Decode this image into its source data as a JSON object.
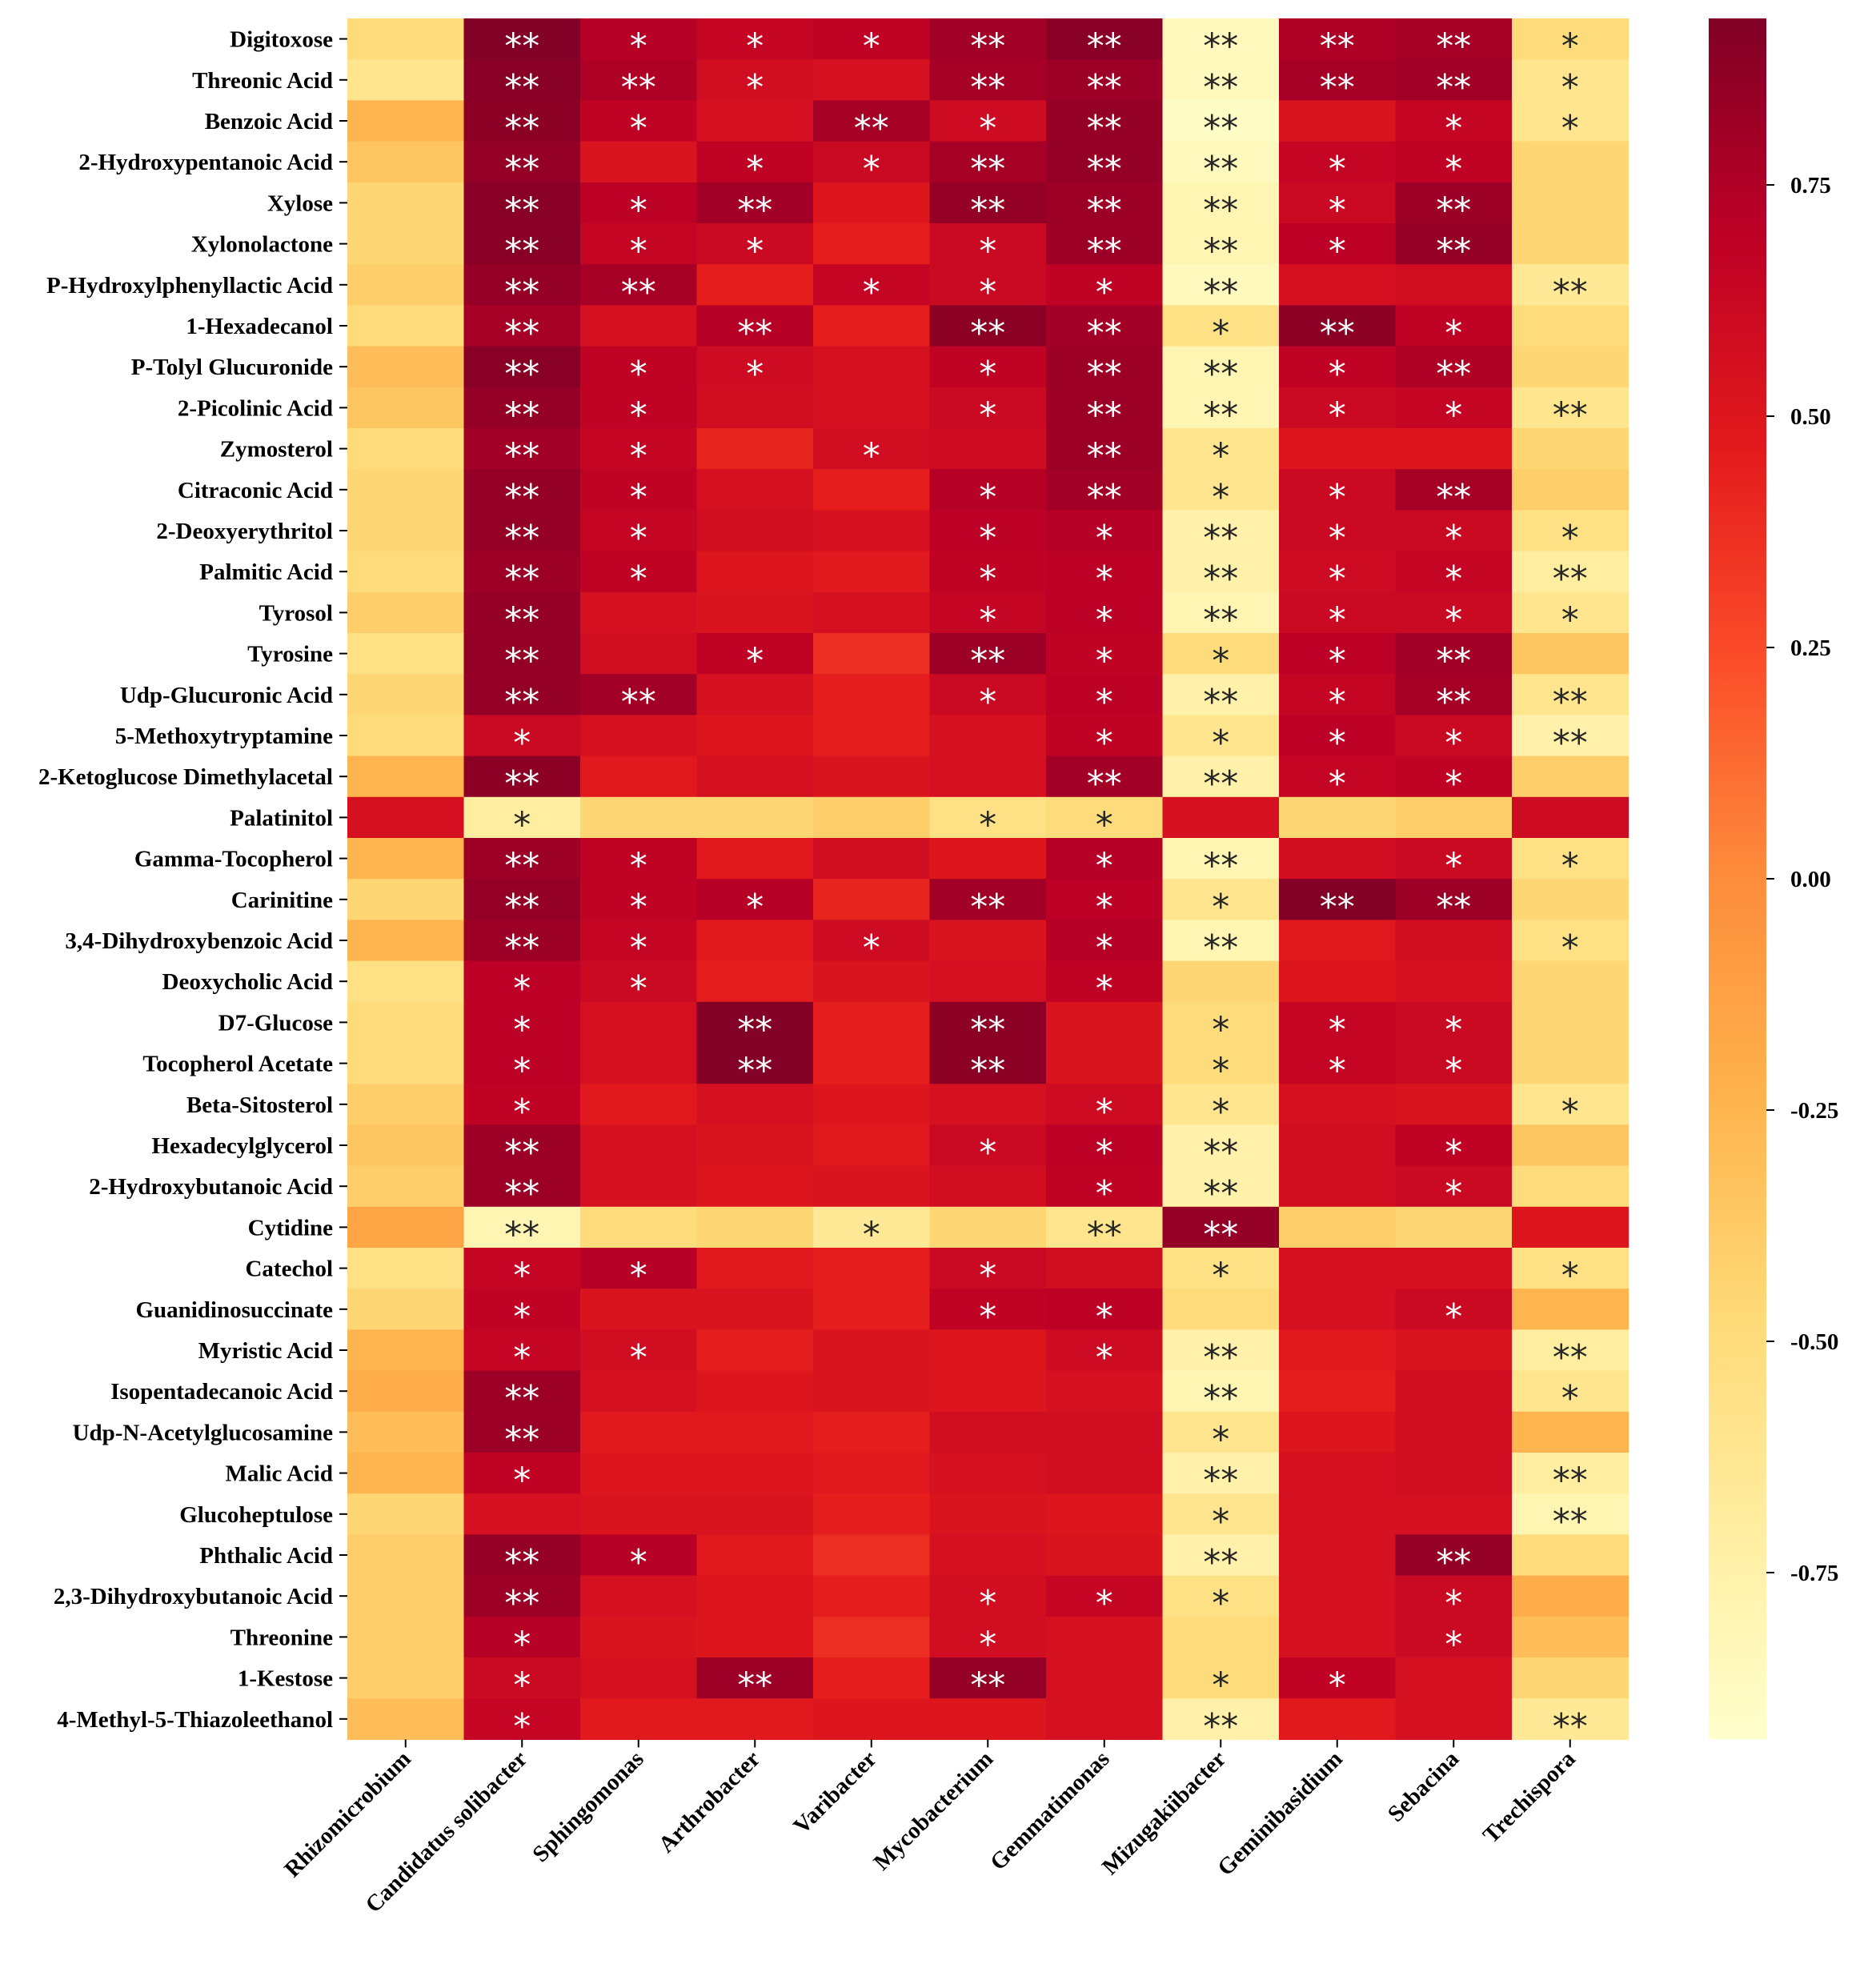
{
  "chart_data": {
    "type": "heatmap",
    "title": "",
    "xlabel": "",
    "ylabel": "",
    "columns": [
      "Rhizomicrobium",
      "Candidatus solibacter",
      "Sphingomonas",
      "Arthrobacter",
      "Varibacter",
      "Mycobacterium",
      "Gemmatimonas",
      "Mizugakiibacter",
      "Geminibasidium",
      "Sebacina",
      "Trechispora"
    ],
    "rows": [
      "Digitoxose",
      "Threonic Acid",
      "Benzoic Acid",
      "2-Hydroxypentanoic Acid",
      "Xylose",
      "Xylonolactone",
      "P-Hydroxylphenyllactic Acid",
      "1-Hexadecanol",
      "P-Tolyl Glucuronide",
      "2-Picolinic Acid",
      "Zymosterol",
      "Citraconic Acid",
      "2-Deoxyerythritol",
      "Palmitic Acid",
      "Tyrosol",
      "Tyrosine",
      "Udp-Glucuronic Acid",
      "5-Methoxytryptamine",
      "2-Ketoglucose Dimethylacetal",
      "Palatinitol",
      "Gamma-Tocopherol",
      "Carinitine",
      "3,4-Dihydroxybenzoic Acid",
      "Deoxycholic Acid",
      "D7-Glucose",
      "Tocopherol Acetate",
      "Beta-Sitosterol",
      "Hexadecylglycerol",
      "2-Hydroxybutanoic Acid",
      "Cytidine",
      "Catechol",
      "Guanidinosuccinate",
      "Myristic Acid",
      "Isopentadecanoic Acid",
      "Udp-N-Acetylglucosamine",
      "Malic Acid",
      "Glucoheptulose",
      "Phthalic Acid",
      "2,3-Dihydroxybutanoic Acid",
      "Threonine",
      "1-Kestose",
      "4-Methyl-5-Thiazoleethanol"
    ],
    "values": [
      [
        -0.5,
        0.92,
        0.72,
        0.65,
        0.68,
        0.8,
        0.9,
        -0.85,
        0.75,
        0.78,
        -0.5
      ],
      [
        -0.6,
        0.9,
        0.75,
        0.58,
        0.55,
        0.78,
        0.82,
        -0.85,
        0.78,
        0.8,
        -0.6
      ],
      [
        -0.25,
        0.88,
        0.68,
        0.55,
        0.78,
        0.6,
        0.85,
        -0.9,
        0.52,
        0.65,
        -0.6
      ],
      [
        -0.35,
        0.85,
        0.52,
        0.68,
        0.62,
        0.78,
        0.85,
        -0.85,
        0.65,
        0.68,
        -0.45
      ],
      [
        -0.45,
        0.9,
        0.7,
        0.8,
        0.5,
        0.85,
        0.82,
        -0.8,
        0.62,
        0.82,
        -0.45
      ],
      [
        -0.45,
        0.9,
        0.65,
        0.62,
        0.45,
        0.62,
        0.82,
        -0.8,
        0.7,
        0.85,
        -0.45
      ],
      [
        -0.4,
        0.85,
        0.78,
        0.45,
        0.65,
        0.62,
        0.68,
        -0.85,
        0.55,
        0.58,
        -0.65
      ],
      [
        -0.5,
        0.78,
        0.55,
        0.72,
        0.45,
        0.88,
        0.8,
        -0.55,
        0.88,
        0.68,
        -0.5
      ],
      [
        -0.3,
        0.9,
        0.68,
        0.6,
        0.55,
        0.68,
        0.82,
        -0.8,
        0.68,
        0.75,
        -0.45
      ],
      [
        -0.35,
        0.85,
        0.68,
        0.58,
        0.55,
        0.62,
        0.82,
        -0.8,
        0.62,
        0.65,
        -0.6
      ],
      [
        -0.5,
        0.8,
        0.65,
        0.42,
        0.58,
        0.6,
        0.82,
        -0.6,
        0.5,
        0.5,
        -0.45
      ],
      [
        -0.45,
        0.85,
        0.68,
        0.55,
        0.45,
        0.72,
        0.8,
        -0.6,
        0.62,
        0.78,
        -0.4
      ],
      [
        -0.45,
        0.85,
        0.65,
        0.58,
        0.55,
        0.7,
        0.72,
        -0.75,
        0.62,
        0.62,
        -0.55
      ],
      [
        -0.5,
        0.82,
        0.68,
        0.5,
        0.48,
        0.68,
        0.7,
        -0.75,
        0.6,
        0.65,
        -0.7
      ],
      [
        -0.4,
        0.85,
        0.55,
        0.52,
        0.55,
        0.65,
        0.7,
        -0.8,
        0.62,
        0.62,
        -0.6
      ],
      [
        -0.55,
        0.85,
        0.58,
        0.68,
        0.38,
        0.82,
        0.68,
        -0.5,
        0.7,
        0.8,
        -0.35
      ],
      [
        -0.45,
        0.85,
        0.8,
        0.55,
        0.45,
        0.62,
        0.7,
        -0.75,
        0.65,
        0.78,
        -0.6
      ],
      [
        -0.5,
        0.62,
        0.55,
        0.5,
        0.45,
        0.55,
        0.68,
        -0.6,
        0.7,
        0.62,
        -0.75
      ],
      [
        -0.25,
        0.88,
        0.48,
        0.55,
        0.52,
        0.55,
        0.8,
        -0.75,
        0.65,
        0.68,
        -0.4
      ],
      [
        0.55,
        -0.7,
        -0.45,
        -0.45,
        -0.4,
        -0.55,
        -0.5,
        0.55,
        -0.45,
        -0.4,
        0.6
      ],
      [
        -0.25,
        0.82,
        0.68,
        0.48,
        0.58,
        0.5,
        0.72,
        -0.8,
        0.58,
        0.62,
        -0.55
      ],
      [
        -0.45,
        0.85,
        0.68,
        0.72,
        0.42,
        0.8,
        0.7,
        -0.6,
        0.92,
        0.82,
        -0.45
      ],
      [
        -0.25,
        0.82,
        0.65,
        0.48,
        0.6,
        0.52,
        0.72,
        -0.8,
        0.48,
        0.58,
        -0.55
      ],
      [
        -0.55,
        0.7,
        0.62,
        0.45,
        0.52,
        0.55,
        0.68,
        -0.45,
        0.5,
        0.55,
        -0.45
      ],
      [
        -0.5,
        0.7,
        0.55,
        0.92,
        0.45,
        0.88,
        0.52,
        -0.5,
        0.65,
        0.62,
        -0.45
      ],
      [
        -0.5,
        0.7,
        0.55,
        0.92,
        0.45,
        0.88,
        0.52,
        -0.5,
        0.65,
        0.62,
        -0.45
      ],
      [
        -0.4,
        0.68,
        0.48,
        0.55,
        0.5,
        0.55,
        0.6,
        -0.6,
        0.55,
        0.52,
        -0.6
      ],
      [
        -0.35,
        0.82,
        0.55,
        0.52,
        0.48,
        0.62,
        0.7,
        -0.75,
        0.58,
        0.68,
        -0.35
      ],
      [
        -0.4,
        0.82,
        0.55,
        0.5,
        0.52,
        0.58,
        0.68,
        -0.75,
        0.58,
        0.62,
        -0.5
      ],
      [
        -0.15,
        -0.8,
        -0.5,
        -0.45,
        -0.65,
        -0.45,
        -0.6,
        0.85,
        -0.4,
        -0.45,
        0.5
      ],
      [
        -0.55,
        0.65,
        0.72,
        0.48,
        0.45,
        0.62,
        0.58,
        -0.55,
        0.55,
        0.55,
        -0.55
      ],
      [
        -0.45,
        0.68,
        0.52,
        0.52,
        0.45,
        0.68,
        0.7,
        -0.5,
        0.55,
        0.62,
        -0.25
      ],
      [
        -0.25,
        0.65,
        0.58,
        0.45,
        0.52,
        0.5,
        0.6,
        -0.75,
        0.48,
        0.52,
        -0.7
      ],
      [
        -0.2,
        0.82,
        0.55,
        0.5,
        0.52,
        0.5,
        0.55,
        -0.8,
        0.45,
        0.58,
        -0.6
      ],
      [
        -0.3,
        0.82,
        0.48,
        0.48,
        0.45,
        0.58,
        0.58,
        -0.6,
        0.5,
        0.58,
        -0.25
      ],
      [
        -0.25,
        0.68,
        0.5,
        0.5,
        0.48,
        0.55,
        0.58,
        -0.75,
        0.55,
        0.58,
        -0.7
      ],
      [
        -0.45,
        0.55,
        0.52,
        0.52,
        0.45,
        0.52,
        0.5,
        -0.6,
        0.55,
        0.55,
        -0.8
      ],
      [
        -0.4,
        0.85,
        0.72,
        0.48,
        0.38,
        0.55,
        0.52,
        -0.75,
        0.55,
        0.85,
        -0.5
      ],
      [
        -0.4,
        0.82,
        0.55,
        0.5,
        0.45,
        0.58,
        0.65,
        -0.55,
        0.55,
        0.62,
        -0.2
      ],
      [
        -0.4,
        0.72,
        0.52,
        0.5,
        0.38,
        0.58,
        0.55,
        -0.5,
        0.55,
        0.62,
        -0.3
      ],
      [
        -0.4,
        0.62,
        0.55,
        0.82,
        0.45,
        0.85,
        0.55,
        -0.5,
        0.68,
        0.55,
        -0.45
      ],
      [
        -0.3,
        0.65,
        0.48,
        0.48,
        0.5,
        0.5,
        0.55,
        -0.75,
        0.48,
        0.55,
        -0.65
      ]
    ],
    "significance": [
      [
        "",
        "**",
        "*",
        "*",
        "*",
        "**",
        "**",
        "**",
        "**",
        "**",
        "*"
      ],
      [
        "",
        "**",
        "**",
        "*",
        "",
        "**",
        "**",
        "**",
        "**",
        "**",
        "*"
      ],
      [
        "",
        "**",
        "*",
        "",
        "**",
        "*",
        "**",
        "**",
        "",
        "*",
        "*"
      ],
      [
        "",
        "**",
        "",
        "*",
        "*",
        "**",
        "**",
        "**",
        "*",
        "*",
        ""
      ],
      [
        "",
        "**",
        "*",
        "**",
        "",
        "**",
        "**",
        "**",
        "*",
        "**",
        ""
      ],
      [
        "",
        "**",
        "*",
        "*",
        "",
        "*",
        "**",
        "**",
        "*",
        "**",
        ""
      ],
      [
        "",
        "**",
        "**",
        "",
        "*",
        "*",
        "*",
        "**",
        "",
        "",
        "**"
      ],
      [
        "",
        "**",
        "",
        "**",
        "",
        "**",
        "**",
        "*",
        "**",
        "*",
        ""
      ],
      [
        "",
        "**",
        "*",
        "*",
        "",
        "*",
        "**",
        "**",
        "*",
        "**",
        ""
      ],
      [
        "",
        "**",
        "*",
        "",
        "",
        "*",
        "**",
        "**",
        "*",
        "*",
        "**"
      ],
      [
        "",
        "**",
        "*",
        "",
        "*",
        "",
        "**",
        "*",
        "",
        "",
        ""
      ],
      [
        "",
        "**",
        "*",
        "",
        "",
        "*",
        "**",
        "*",
        "*",
        "**",
        ""
      ],
      [
        "",
        "**",
        "*",
        "",
        "",
        "*",
        "*",
        "**",
        "*",
        "*",
        "*"
      ],
      [
        "",
        "**",
        "*",
        "",
        "",
        "*",
        "*",
        "**",
        "*",
        "*",
        "**"
      ],
      [
        "",
        "**",
        "",
        "",
        "",
        "*",
        "*",
        "**",
        "*",
        "*",
        "*"
      ],
      [
        "",
        "**",
        "",
        "*",
        "",
        "**",
        "*",
        "*",
        "*",
        "**",
        ""
      ],
      [
        "",
        "**",
        "**",
        "",
        "",
        "*",
        "*",
        "**",
        "*",
        "**",
        "**"
      ],
      [
        "",
        "*",
        "",
        "",
        "",
        "",
        "*",
        "*",
        "*",
        "*",
        "**"
      ],
      [
        "",
        "**",
        "",
        "",
        "",
        "",
        "**",
        "**",
        "*",
        "*",
        ""
      ],
      [
        "",
        "*",
        "",
        "",
        "",
        "*",
        "*",
        "",
        "",
        "",
        ""
      ],
      [
        "",
        "**",
        "*",
        "",
        "",
        "",
        "*",
        "**",
        "",
        "*",
        "*"
      ],
      [
        "",
        "**",
        "*",
        "*",
        "",
        "**",
        "*",
        "*",
        "**",
        "**",
        ""
      ],
      [
        "",
        "**",
        "*",
        "",
        "*",
        "",
        "*",
        "**",
        "",
        "",
        "*"
      ],
      [
        "",
        "*",
        "*",
        "",
        "",
        "",
        "*",
        "",
        "",
        "",
        ""
      ],
      [
        "",
        "*",
        "",
        "**",
        "",
        "**",
        "",
        "*",
        "*",
        "*",
        ""
      ],
      [
        "",
        "*",
        "",
        "**",
        "",
        "**",
        "",
        "*",
        "*",
        "*",
        ""
      ],
      [
        "",
        "*",
        "",
        "",
        "",
        "",
        "*",
        "*",
        "",
        "",
        "*"
      ],
      [
        "",
        "**",
        "",
        "",
        "",
        "*",
        "*",
        "**",
        "",
        "*",
        ""
      ],
      [
        "",
        "**",
        "",
        "",
        "",
        "",
        "*",
        "**",
        "",
        "*",
        ""
      ],
      [
        "",
        "**",
        "",
        "",
        "*",
        "",
        "**",
        "**",
        "",
        "",
        ""
      ],
      [
        "",
        "*",
        "*",
        "",
        "",
        "*",
        "",
        "*",
        "",
        "",
        "*"
      ],
      [
        "",
        "*",
        "",
        "",
        "",
        "*",
        "*",
        "",
        "",
        "*",
        ""
      ],
      [
        "",
        "*",
        "*",
        "",
        "",
        "",
        "*",
        "**",
        "",
        "",
        "**"
      ],
      [
        "",
        "**",
        "",
        "",
        "",
        "",
        "",
        "**",
        "",
        "",
        "*"
      ],
      [
        "",
        "**",
        "",
        "",
        "",
        "",
        "",
        "*",
        "",
        "",
        ""
      ],
      [
        "",
        "*",
        "",
        "",
        "",
        "",
        "",
        "**",
        "",
        "",
        "**"
      ],
      [
        "",
        "",
        "",
        "",
        "",
        "",
        "",
        "*",
        "",
        "",
        "**"
      ],
      [
        "",
        "**",
        "*",
        "",
        "",
        "",
        "",
        "**",
        "",
        "**",
        ""
      ],
      [
        "",
        "**",
        "",
        "",
        "",
        "*",
        "*",
        "*",
        "",
        "*",
        ""
      ],
      [
        "",
        "*",
        "",
        "",
        "",
        "*",
        "",
        "",
        "",
        "*",
        ""
      ],
      [
        "",
        "*",
        "",
        "**",
        "",
        "**",
        "",
        "*",
        "*",
        "",
        ""
      ],
      [
        "",
        "*",
        "",
        "",
        "",
        "",
        "",
        "**",
        "",
        "",
        "**"
      ]
    ],
    "colorbar": {
      "colormap": "YlOrRd",
      "vmin": -0.93,
      "vmax": 0.93,
      "ticks": [
        0.75,
        0.5,
        0.25,
        0.0,
        -0.25,
        -0.5,
        -0.75
      ],
      "tick_labels": [
        "0.75",
        "0.50",
        "0.25",
        "0.00",
        "-0.25",
        "-0.50",
        "-0.75"
      ]
    }
  }
}
